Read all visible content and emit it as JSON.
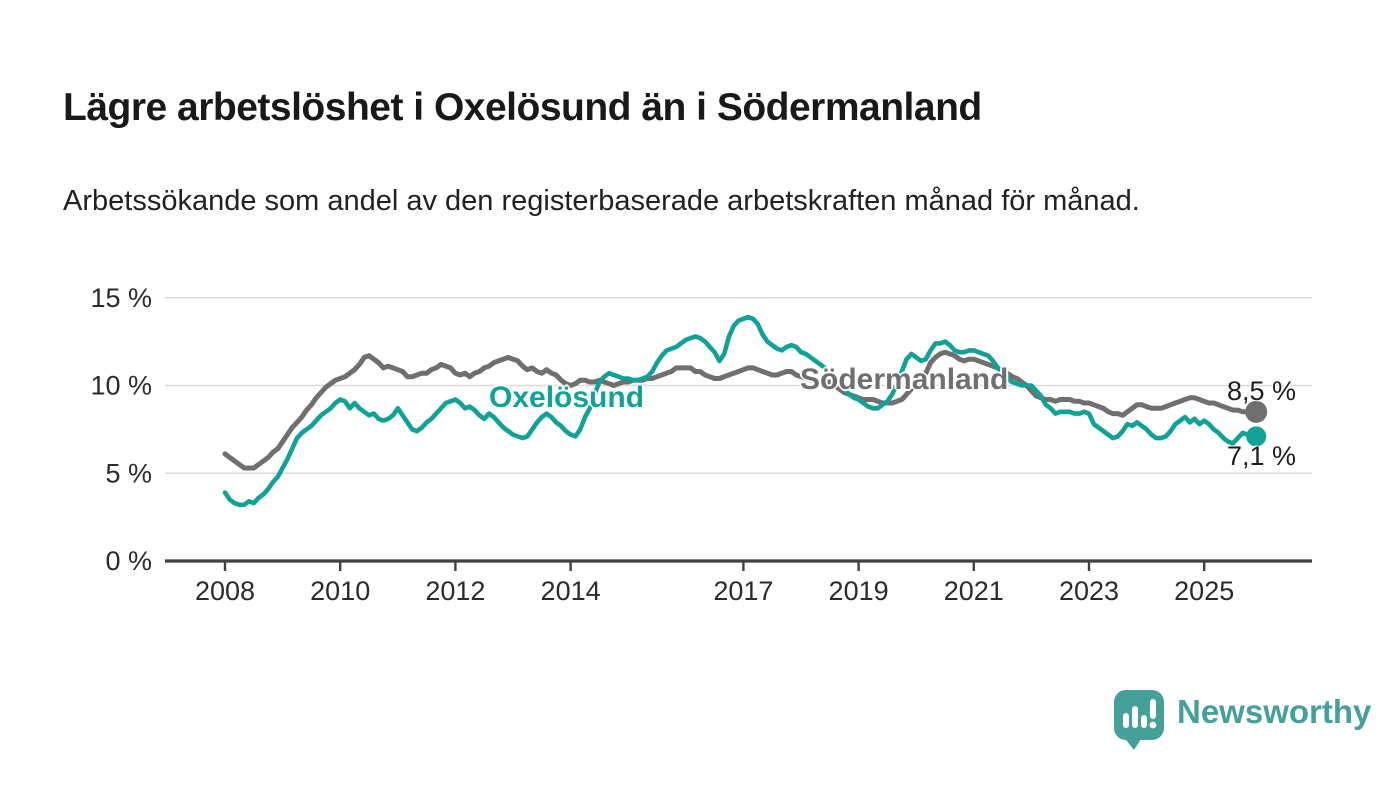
{
  "header": {
    "title": "Lägre arbetslöshet i Oxelösund än i Södermanland",
    "subtitle": "Arbetssökande som andel av den registerbaserade arbetskraften månad för månad."
  },
  "branding": {
    "logo_text": "Newsworthy",
    "logo_color": "#44A098",
    "logo_icon": "speech-bubble-bar-chart-icon"
  },
  "chart_data": {
    "type": "line",
    "title": "Lägre arbetslöshet i Oxelösund än i Södermanland",
    "subtitle": "Arbetssökande som andel av den registerbaserade arbetskraften månad för månad.",
    "frequency": "monthly",
    "x_start": "2008-01",
    "x_end": "2025-11",
    "ylim": [
      0,
      15
    ],
    "grid": "horizontal",
    "legend_position": "inline-labels",
    "y_tick_labels": [
      "0 %",
      "5 %",
      "10 %",
      "15 %"
    ],
    "y_tick_values": [
      0,
      5,
      10,
      15
    ],
    "x_tick_years": [
      2008,
      2010,
      2012,
      2014,
      2017,
      2019,
      2021,
      2023,
      2025
    ],
    "x_tick_labels": [
      "2008",
      "2010",
      "2012",
      "2014",
      "2017",
      "2019",
      "2021",
      "2023",
      "2025"
    ],
    "series": [
      {
        "name": "Södermanland",
        "color": "#6F6F6F",
        "end_label": "8,5 %",
        "end_value": 8.5,
        "values": [
          6.1,
          5.9,
          5.7,
          5.5,
          5.3,
          5.3,
          5.3,
          5.5,
          5.7,
          5.9,
          6.2,
          6.4,
          6.8,
          7.2,
          7.6,
          7.9,
          8.2,
          8.6,
          8.9,
          9.3,
          9.6,
          9.9,
          10.1,
          10.3,
          10.4,
          10.5,
          10.7,
          10.9,
          11.2,
          11.6,
          11.7,
          11.5,
          11.3,
          11.0,
          11.1,
          11.0,
          10.9,
          10.8,
          10.5,
          10.5,
          10.6,
          10.7,
          10.7,
          10.9,
          11.0,
          11.2,
          11.1,
          11.0,
          10.7,
          10.6,
          10.7,
          10.5,
          10.7,
          10.8,
          11.0,
          11.1,
          11.3,
          11.4,
          11.5,
          11.6,
          11.5,
          11.4,
          11.1,
          10.9,
          11.0,
          10.8,
          10.7,
          10.9,
          10.7,
          10.6,
          10.3,
          10.1,
          10.0,
          10.1,
          10.3,
          10.3,
          10.2,
          10.2,
          10.3,
          10.2,
          10.1,
          10.0,
          10.1,
          10.2,
          10.2,
          10.3,
          10.3,
          10.3,
          10.4,
          10.4,
          10.5,
          10.6,
          10.7,
          10.8,
          11.0,
          11.0,
          11.0,
          11.0,
          10.8,
          10.8,
          10.6,
          10.5,
          10.4,
          10.4,
          10.5,
          10.6,
          10.7,
          10.8,
          10.9,
          11.0,
          11.0,
          10.9,
          10.8,
          10.7,
          10.6,
          10.6,
          10.7,
          10.8,
          10.8,
          10.6,
          10.5,
          10.4,
          10.3,
          10.3,
          10.2,
          10.2,
          10.2,
          10.0,
          9.8,
          9.6,
          9.5,
          9.4,
          9.3,
          9.2,
          9.2,
          9.2,
          9.1,
          9.0,
          9.0,
          9.0,
          9.1,
          9.2,
          9.5,
          9.8,
          10.1,
          10.3,
          10.7,
          11.3,
          11.6,
          11.8,
          11.9,
          11.8,
          11.7,
          11.5,
          11.4,
          11.5,
          11.5,
          11.4,
          11.3,
          11.2,
          11.1,
          11.0,
          10.8,
          10.7,
          10.5,
          10.4,
          10.2,
          10.0,
          9.7,
          9.4,
          9.3,
          9.2,
          9.2,
          9.1,
          9.2,
          9.2,
          9.2,
          9.1,
          9.1,
          9.0,
          9.0,
          8.9,
          8.8,
          8.7,
          8.5,
          8.4,
          8.4,
          8.3,
          8.5,
          8.7,
          8.9,
          8.9,
          8.8,
          8.7,
          8.7,
          8.7,
          8.8,
          8.9,
          9.0,
          9.1,
          9.2,
          9.3,
          9.3,
          9.2,
          9.1,
          9.0,
          9.0,
          8.9,
          8.8,
          8.7,
          8.6,
          8.6,
          8.5,
          8.5,
          8.5
        ]
      },
      {
        "name": "Oxelösund",
        "color": "#10A296",
        "end_label": "7,1 %",
        "end_value": 7.1,
        "values": [
          3.9,
          3.5,
          3.3,
          3.2,
          3.2,
          3.4,
          3.3,
          3.6,
          3.8,
          4.1,
          4.5,
          4.8,
          5.3,
          5.8,
          6.4,
          7.0,
          7.3,
          7.5,
          7.7,
          8.0,
          8.3,
          8.5,
          8.7,
          9.0,
          9.2,
          9.1,
          8.7,
          9.0,
          8.7,
          8.5,
          8.3,
          8.4,
          8.1,
          8.0,
          8.1,
          8.3,
          8.7,
          8.3,
          7.9,
          7.5,
          7.4,
          7.6,
          7.9,
          8.1,
          8.4,
          8.7,
          9.0,
          9.1,
          9.2,
          9.0,
          8.7,
          8.8,
          8.6,
          8.3,
          8.1,
          8.4,
          8.2,
          7.9,
          7.6,
          7.4,
          7.2,
          7.1,
          7.0,
          7.1,
          7.5,
          7.9,
          8.2,
          8.4,
          8.2,
          7.9,
          7.7,
          7.4,
          7.2,
          7.1,
          7.5,
          8.2,
          8.7,
          9.5,
          10.2,
          10.5,
          10.7,
          10.6,
          10.5,
          10.4,
          10.4,
          10.3,
          10.3,
          10.4,
          10.5,
          10.8,
          11.3,
          11.7,
          12.0,
          12.1,
          12.2,
          12.4,
          12.6,
          12.7,
          12.8,
          12.7,
          12.5,
          12.2,
          11.9,
          11.4,
          11.8,
          12.8,
          13.4,
          13.7,
          13.8,
          13.9,
          13.8,
          13.5,
          12.9,
          12.5,
          12.3,
          12.1,
          12.0,
          12.2,
          12.3,
          12.2,
          11.9,
          11.8,
          11.6,
          11.4,
          11.2,
          11.0,
          10.7,
          10.4,
          10.1,
          9.8,
          9.5,
          9.3,
          9.2,
          9.0,
          8.8,
          8.7,
          8.7,
          8.9,
          9.1,
          9.5,
          10.1,
          10.8,
          11.5,
          11.8,
          11.6,
          11.4,
          11.5,
          12.0,
          12.4,
          12.4,
          12.5,
          12.3,
          12.0,
          11.9,
          11.9,
          12.0,
          12.0,
          11.9,
          11.8,
          11.7,
          11.4,
          11.0,
          10.7,
          10.4,
          10.2,
          10.1,
          10.0,
          10.0,
          10.0,
          9.7,
          9.4,
          8.9,
          8.7,
          8.4,
          8.5,
          8.5,
          8.5,
          8.4,
          8.4,
          8.5,
          8.4,
          7.8,
          7.6,
          7.4,
          7.2,
          7.0,
          7.1,
          7.4,
          7.8,
          7.7,
          7.9,
          7.7,
          7.5,
          7.2,
          7.0,
          7.0,
          7.1,
          7.4,
          7.8,
          8.0,
          8.2,
          7.9,
          8.1,
          7.8,
          8.0,
          7.8,
          7.5,
          7.3,
          7.0,
          6.8,
          6.7,
          7.0,
          7.3,
          7.2,
          7.1
        ]
      }
    ]
  }
}
